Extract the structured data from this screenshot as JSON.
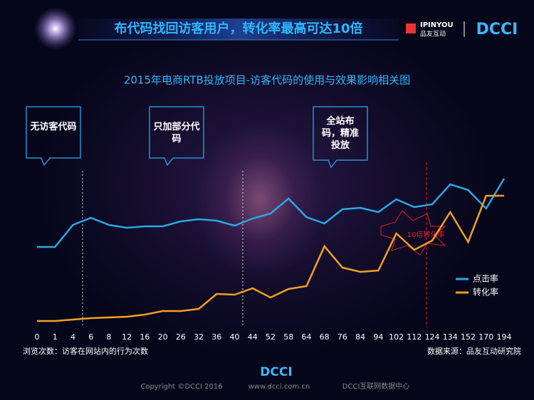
{
  "header": {
    "title": "布代码找回访客用户，转化率最高可达10倍",
    "logo_en": "IPINYOU",
    "logo_cn": "品友互动",
    "logo_dcci": "DCCI"
  },
  "chart_data": {
    "type": "line",
    "title": "2015年电商RTB投放项目-访客代码的使用与效果影响相关图",
    "categories": [
      "0",
      "1",
      "4",
      "6",
      "8",
      "12",
      "16",
      "20",
      "26",
      "32",
      "36",
      "40",
      "44",
      "52",
      "58",
      "64",
      "68",
      "76",
      "84",
      "94",
      "102",
      "112",
      "124",
      "134",
      "152",
      "170",
      "194"
    ],
    "series": [
      {
        "name": "点击率",
        "color": "#29a8e6",
        "values": [
          113,
          113,
          144,
          154,
          144,
          140,
          142,
          142,
          149,
          152,
          150,
          143,
          153,
          160,
          181,
          155,
          146,
          166,
          168,
          162,
          180,
          169,
          173,
          201,
          193,
          167,
          209
        ]
      },
      {
        "name": "转化率",
        "color": "#f0a020",
        "values": [
          9,
          9,
          11,
          13,
          14,
          15,
          18,
          23,
          23,
          26,
          47,
          46,
          55,
          42,
          54,
          58,
          114,
          84,
          78,
          80,
          132,
          109,
          122,
          162,
          120,
          185,
          185
        ]
      }
    ],
    "legend": "right",
    "callouts": [
      "无访客代码",
      "只加部分代码",
      "全站布码，精准投放"
    ],
    "annotation": "10倍转化率",
    "x_label": "浏览次数：访客在网站内的行为次数",
    "source": "数据来源：品友互动研究院"
  },
  "footer": {
    "logo": "DCCI",
    "copyright": "Copyright ©DCCI 2016",
    "site": "www.dcci.com.cn",
    "org": "DCCI互联网数据中心"
  }
}
